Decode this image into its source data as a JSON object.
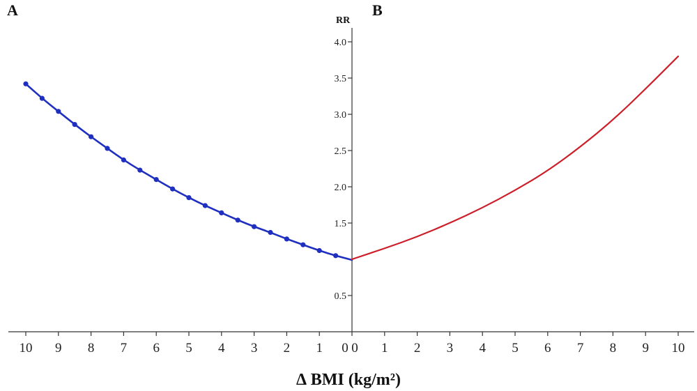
{
  "panels": {
    "a_label": "A",
    "b_label": "B"
  },
  "chart_data": {
    "type": "line",
    "ylabel": "RR",
    "xlabel": "∆ BMI (kg/m²)",
    "ylim": [
      0,
      4
    ],
    "y_ticks": [
      "0.5",
      "1.5",
      "2.0",
      "2.5",
      "3.0",
      "3.5",
      "4.0"
    ],
    "x_ticks_left": [
      "10",
      "9",
      "8",
      "7",
      "6",
      "5",
      "4",
      "3",
      "2",
      "1",
      "0"
    ],
    "x_ticks_right": [
      "0",
      "1",
      "2",
      "3",
      "4",
      "5",
      "6",
      "7",
      "8",
      "9",
      "10"
    ],
    "grid": false,
    "series": [
      {
        "panel": "A",
        "color": "#1f2fbf",
        "markers": true,
        "x": [
          10,
          9.5,
          9,
          8.5,
          8,
          7.5,
          7,
          6.5,
          6,
          5.5,
          5,
          4.5,
          4,
          3.5,
          3,
          2.5,
          2,
          1.5,
          1,
          0.5,
          0
        ],
        "y": [
          3.42,
          3.22,
          3.04,
          2.86,
          2.69,
          2.53,
          2.37,
          2.23,
          2.1,
          1.97,
          1.85,
          1.74,
          1.64,
          1.54,
          1.45,
          1.37,
          1.28,
          1.2,
          1.12,
          1.05,
          0.99
        ]
      },
      {
        "panel": "B",
        "color": "#cc1f2a",
        "markers": false,
        "x": [
          0,
          1,
          2,
          3,
          4,
          5,
          6,
          7,
          8,
          9,
          10
        ],
        "y": [
          1.0,
          1.15,
          1.31,
          1.5,
          1.71,
          1.95,
          2.22,
          2.55,
          2.92,
          3.35,
          3.8
        ]
      }
    ]
  }
}
